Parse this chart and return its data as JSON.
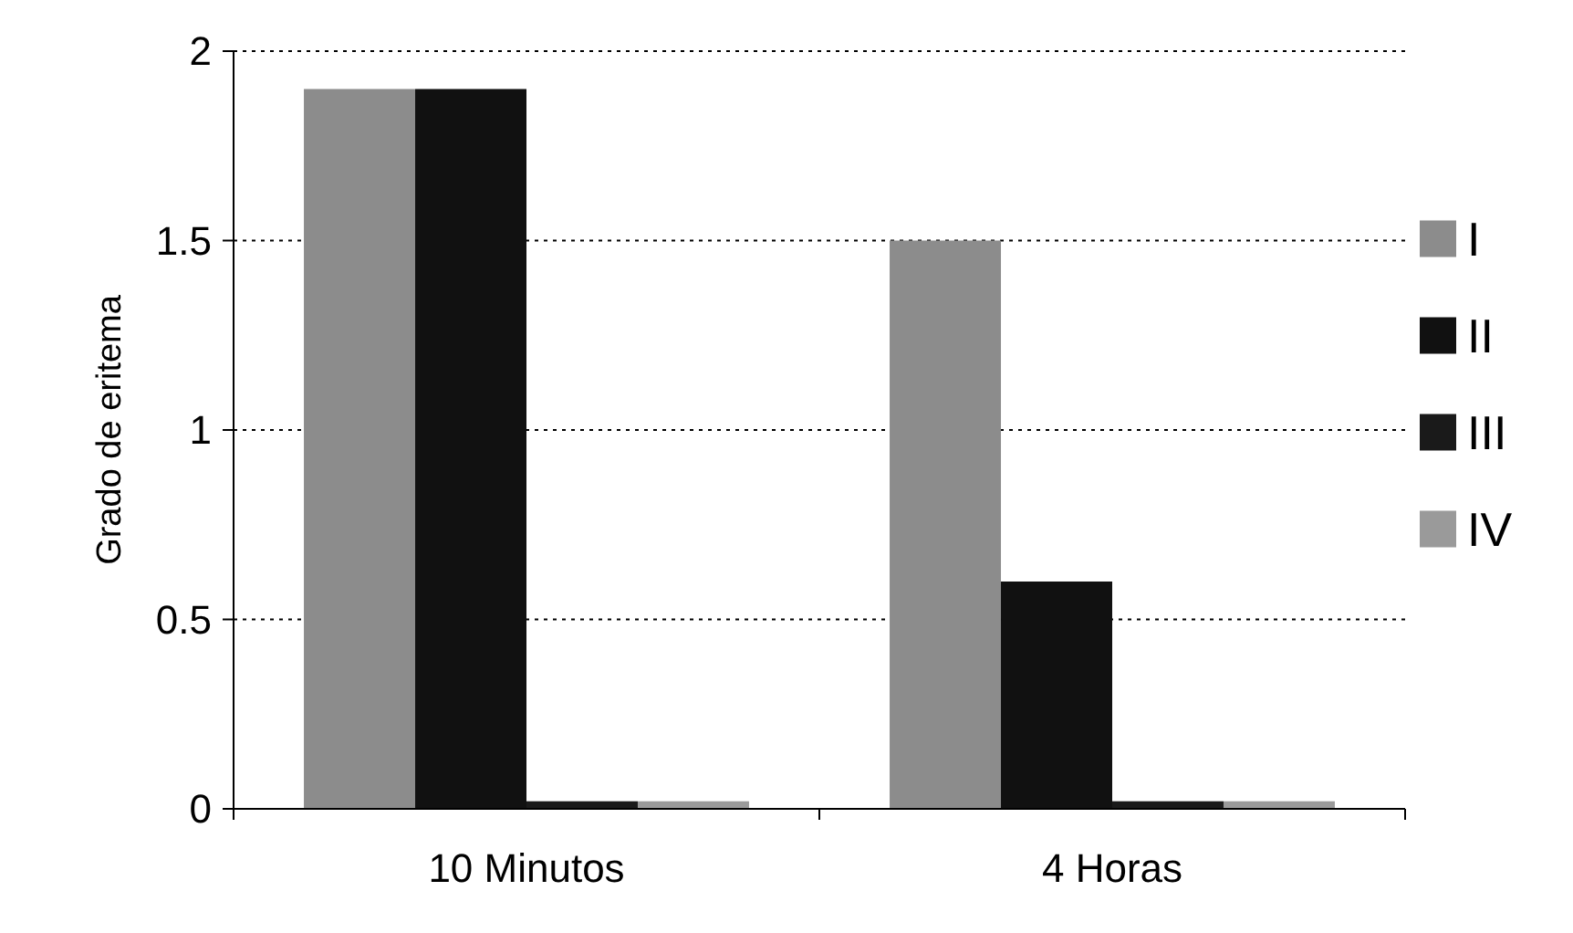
{
  "chart_data": {
    "type": "bar",
    "ylabel": "Grado de eritema",
    "categories": [
      "10 Minutos",
      "4 Horas"
    ],
    "series": [
      {
        "name": "I",
        "color": "#8c8c8c",
        "values": [
          1.9,
          1.5
        ]
      },
      {
        "name": "II",
        "color": "#111111",
        "values": [
          1.9,
          0.6
        ]
      },
      {
        "name": "III",
        "color": "#1a1a1a",
        "values": [
          0.02,
          0.02
        ]
      },
      {
        "name": "IV",
        "color": "#9a9a9a",
        "values": [
          0.02,
          0.02
        ]
      }
    ],
    "ylim": [
      0,
      2
    ],
    "yticks": [
      0,
      0.5,
      1,
      1.5,
      2
    ],
    "grid": "y",
    "legend": "right"
  }
}
